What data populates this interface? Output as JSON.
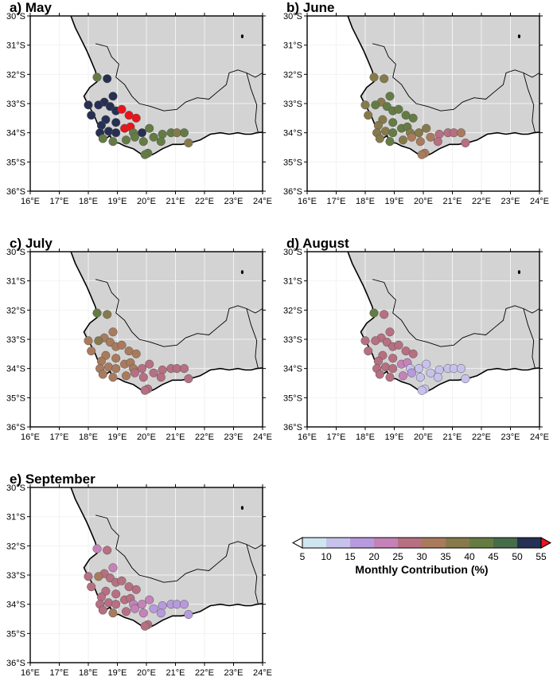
{
  "panels": [
    {
      "title": "a) May",
      "month": "May"
    },
    {
      "title": "b) June",
      "month": "June"
    },
    {
      "title": "c) July",
      "month": "July"
    },
    {
      "title": "d) August",
      "month": "August"
    },
    {
      "title": "e) September",
      "month": "September"
    }
  ],
  "axes": {
    "lon_ticks": [
      "16°E",
      "17°E",
      "18°E",
      "19°E",
      "20°E",
      "21°E",
      "22°E",
      "23°E",
      "24°E"
    ],
    "lat_ticks": [
      "30°S",
      "31°S",
      "32°S",
      "33°S",
      "34°S",
      "35°S",
      "36°S"
    ],
    "lon_range": [
      16,
      24
    ],
    "lat_range": [
      -36,
      -30
    ],
    "grid": true
  },
  "colorbar": {
    "title": "Monthly Contribution (%)",
    "tick_labels": [
      "5",
      "10",
      "15",
      "20",
      "25",
      "30",
      "35",
      "40",
      "45",
      "50",
      "55"
    ],
    "boundaries": [
      5,
      10,
      15,
      20,
      25,
      30,
      35,
      40,
      45,
      50,
      55
    ],
    "colors": [
      "#cfe6f0",
      "#c6c2ec",
      "#b79ade",
      "#c483b8",
      "#b76f82",
      "#a97b5c",
      "#877a4a",
      "#647c44",
      "#466c4a",
      "#263053"
    ],
    "under_color": "#ffffff",
    "over_color": "#e8151c"
  },
  "colors": {
    "land": "#d3d3d3",
    "ocean": "#ffffff",
    "coast": "#000000",
    "border": "#000000"
  },
  "chart_data": {
    "type": "scatter",
    "x_label": "",
    "y_label": "",
    "units": "%",
    "stations": [
      {
        "id": 1,
        "lon": 18.3,
        "lat": -32.1
      },
      {
        "id": 2,
        "lon": 18.65,
        "lat": -32.15
      },
      {
        "id": 3,
        "lon": 18.85,
        "lat": -32.75
      },
      {
        "id": 4,
        "lon": 18.55,
        "lat": -32.95
      },
      {
        "id": 5,
        "lon": 18.0,
        "lat": -33.05
      },
      {
        "id": 6,
        "lon": 18.35,
        "lat": -33.05
      },
      {
        "id": 7,
        "lon": 18.75,
        "lat": -33.1
      },
      {
        "id": 8,
        "lon": 18.95,
        "lat": -33.25
      },
      {
        "id": 9,
        "lon": 19.15,
        "lat": -33.2
      },
      {
        "id": 10,
        "lon": 18.1,
        "lat": -33.4
      },
      {
        "id": 11,
        "lon": 18.6,
        "lat": -33.55
      },
      {
        "id": 12,
        "lon": 19.4,
        "lat": -33.4
      },
      {
        "id": 13,
        "lon": 19.65,
        "lat": -33.5
      },
      {
        "id": 14,
        "lon": 18.45,
        "lat": -33.75
      },
      {
        "id": 15,
        "lon": 18.95,
        "lat": -33.65
      },
      {
        "id": 16,
        "lon": 19.25,
        "lat": -33.85
      },
      {
        "id": 17,
        "lon": 19.45,
        "lat": -33.8
      },
      {
        "id": 18,
        "lon": 18.4,
        "lat": -34.0
      },
      {
        "id": 19,
        "lon": 18.7,
        "lat": -33.95
      },
      {
        "id": 20,
        "lon": 18.95,
        "lat": -34.0
      },
      {
        "id": 21,
        "lon": 19.55,
        "lat": -34.0
      },
      {
        "id": 22,
        "lon": 19.85,
        "lat": -34.0
      },
      {
        "id": 23,
        "lon": 20.1,
        "lat": -33.85
      },
      {
        "id": 24,
        "lon": 20.25,
        "lat": -34.15
      },
      {
        "id": 25,
        "lon": 20.55,
        "lat": -34.05
      },
      {
        "id": 26,
        "lon": 20.85,
        "lat": -34.0
      },
      {
        "id": 27,
        "lon": 21.05,
        "lat": -34.0
      },
      {
        "id": 28,
        "lon": 21.3,
        "lat": -34.0
      },
      {
        "id": 29,
        "lon": 21.45,
        "lat": -34.35
      },
      {
        "id": 30,
        "lon": 18.5,
        "lat": -34.2
      },
      {
        "id": 31,
        "lon": 18.85,
        "lat": -34.3
      },
      {
        "id": 32,
        "lon": 19.3,
        "lat": -34.25
      },
      {
        "id": 33,
        "lon": 19.6,
        "lat": -34.15
      },
      {
        "id": 34,
        "lon": 19.9,
        "lat": -34.3
      },
      {
        "id": 35,
        "lon": 20.05,
        "lat": -34.7
      },
      {
        "id": 36,
        "lon": 19.95,
        "lat": -34.75
      },
      {
        "id": 37,
        "lon": 20.5,
        "lat": -34.3
      }
    ],
    "values_pct": {
      "May": [
        40,
        52,
        52,
        50,
        52,
        52,
        50,
        52,
        57,
        52,
        52,
        57,
        57,
        50,
        52,
        57,
        57,
        50,
        52,
        50,
        40,
        50,
        40,
        40,
        40,
        40,
        35,
        40,
        35,
        40,
        40,
        42,
        40,
        42,
        40,
        40,
        40
      ],
      "June": [
        35,
        35,
        40,
        35,
        35,
        40,
        40,
        40,
        40,
        35,
        35,
        40,
        40,
        35,
        40,
        40,
        40,
        35,
        35,
        40,
        35,
        35,
        35,
        30,
        25,
        25,
        25,
        30,
        25,
        35,
        40,
        35,
        30,
        30,
        30,
        30,
        25
      ],
      "July": [
        40,
        35,
        32,
        30,
        32,
        35,
        32,
        32,
        32,
        30,
        32,
        32,
        32,
        32,
        32,
        32,
        32,
        32,
        32,
        32,
        30,
        28,
        28,
        28,
        28,
        27,
        27,
        28,
        28,
        32,
        32,
        30,
        28,
        28,
        27,
        27,
        27
      ],
      "August": [
        40,
        28,
        27,
        28,
        28,
        25,
        25,
        28,
        27,
        28,
        28,
        25,
        25,
        28,
        27,
        22,
        22,
        28,
        27,
        25,
        13,
        13,
        12,
        12,
        10,
        12,
        13,
        10,
        10,
        28,
        28,
        22,
        15,
        12,
        10,
        12,
        10
      ],
      "September": [
        22,
        28,
        22,
        25,
        28,
        32,
        25,
        28,
        28,
        28,
        28,
        27,
        25,
        28,
        28,
        27,
        27,
        28,
        28,
        27,
        22,
        22,
        22,
        18,
        18,
        18,
        15,
        15,
        18,
        28,
        30,
        25,
        22,
        22,
        25,
        25,
        18
      ]
    }
  }
}
